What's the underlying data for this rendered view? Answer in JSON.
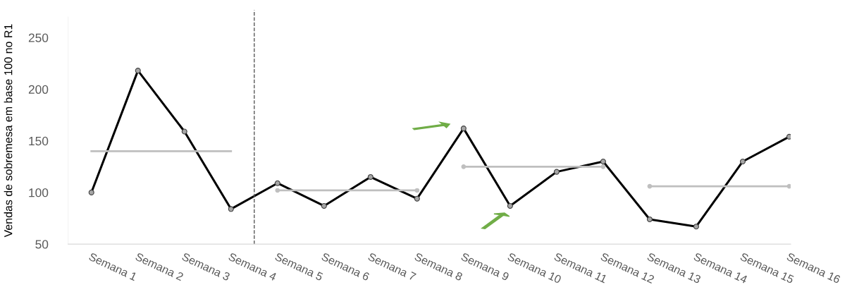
{
  "chart_data": {
    "type": "line",
    "ylabel": "Vendas de sobremesa em base 100 no R1",
    "categories": [
      "Semana 1",
      "Semana 2",
      "Semana 3",
      "Semana 4",
      "Semana 5",
      "Semana 6",
      "Semana 7",
      "Semana 8",
      "Semana 9",
      "Semana 10",
      "Semana 11",
      "Semana 12",
      "Semana 13",
      "Semana 14",
      "Semana 15",
      "Semana 16"
    ],
    "series": [
      {
        "color": "#000000",
        "marker": "circle",
        "values": [
          100,
          218,
          159,
          84,
          109,
          87,
          115,
          94,
          162,
          87,
          120,
          130,
          74,
          67,
          130,
          154
        ]
      },
      {
        "color": "#bfbfbf",
        "marker": "none",
        "x": [
          "Semana 1",
          "Semana 4"
        ],
        "values": [
          140,
          140
        ]
      },
      {
        "color": "#bfbfbf",
        "marker": "circle",
        "x": [
          "Semana 5",
          "Semana 8"
        ],
        "values": [
          102,
          102
        ]
      },
      {
        "color": "#bfbfbf",
        "marker": "circle",
        "x": [
          "Semana 9",
          "Semana 12"
        ],
        "values": [
          125,
          125
        ]
      },
      {
        "color": "#bfbfbf",
        "marker": "circle",
        "x": [
          "Semana 13",
          "Semana 16"
        ],
        "values": [
          106,
          106
        ]
      }
    ],
    "ylim": [
      50,
      270
    ],
    "yticks": [
      50,
      100,
      150,
      200,
      250
    ],
    "grid": false,
    "legend": false
  }
}
